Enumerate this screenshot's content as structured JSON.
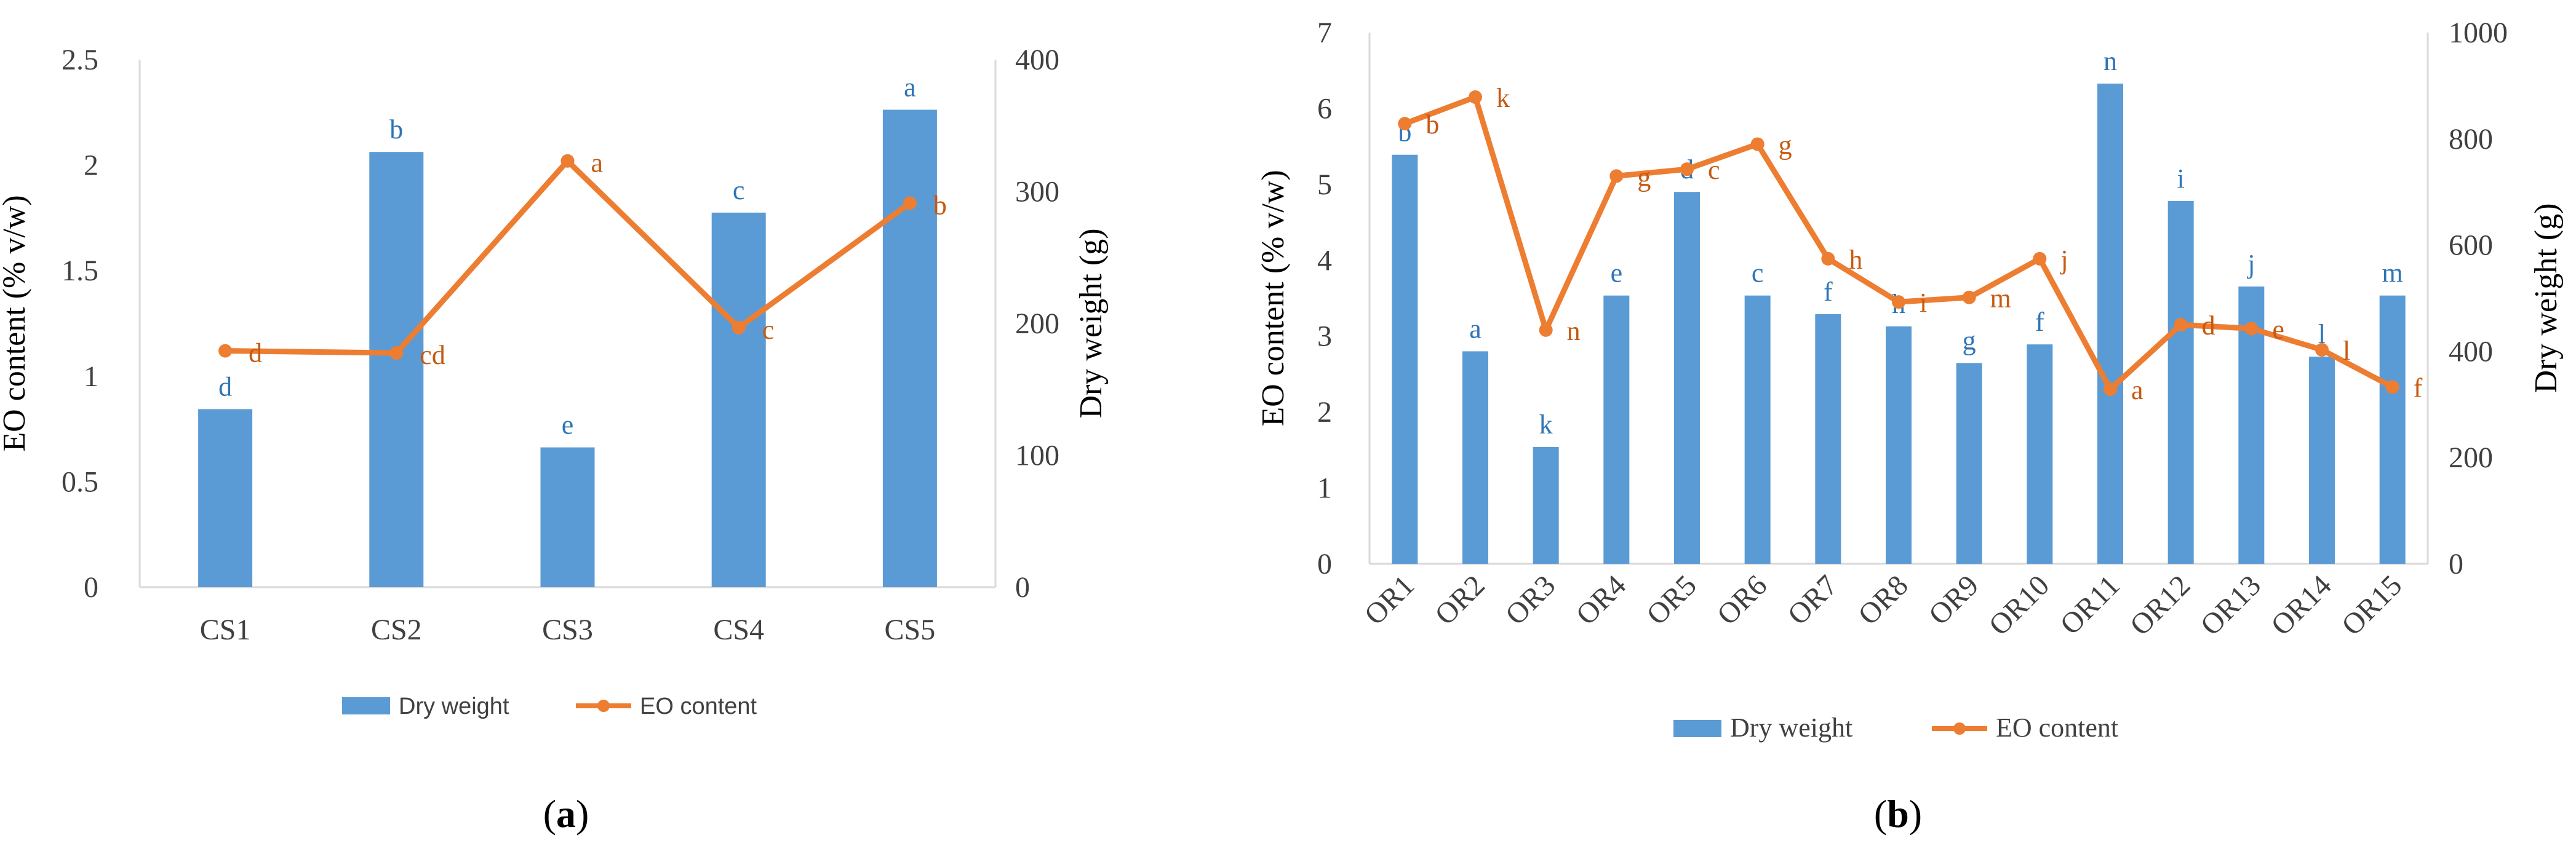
{
  "colors": {
    "bar": "#5B9BD5",
    "line": "#ED7D31",
    "bar_label": "#2E75B6",
    "line_label": "#C55A11",
    "axis": "#D9D9D9",
    "text": "#404040"
  },
  "chart_data": [
    {
      "type": "bar+line",
      "panel_label": "a",
      "categories": [
        "CS1",
        "CS2",
        "CS3",
        "CS4",
        "CS5"
      ],
      "series": [
        {
          "name": "Dry weight",
          "kind": "bar",
          "axis": "right",
          "values": [
            135,
            330,
            106,
            284,
            362
          ],
          "labels": [
            "d",
            "b",
            "e",
            "c",
            "a"
          ]
        },
        {
          "name": "EO content",
          "kind": "line",
          "axis": "left",
          "values": [
            1.12,
            1.11,
            2.02,
            1.23,
            1.82
          ],
          "labels": [
            "d",
            "cd",
            "a",
            "c",
            "b"
          ]
        }
      ],
      "ylabel_left": "EO content (% v/w)",
      "ylabel_right": "Dry weight (g)",
      "ylim_left": [
        0,
        2.5
      ],
      "yticks_left": [
        "0",
        "0.5",
        "1",
        "1.5",
        "2",
        "2.5"
      ],
      "ylim_right": [
        0,
        400
      ],
      "yticks_right": [
        "0",
        "100",
        "200",
        "300",
        "400"
      ],
      "legend": [
        "Dry weight",
        "EO content"
      ]
    },
    {
      "type": "bar+line",
      "panel_label": "b",
      "categories": [
        "OR1",
        "OR2",
        "OR3",
        "OR4",
        "OR5",
        "OR6",
        "OR7",
        "OR8",
        "OR9",
        "OR10",
        "OR11",
        "OR12",
        "OR13",
        "OR14",
        "OR15"
      ],
      "series": [
        {
          "name": "Dry weight",
          "kind": "bar",
          "axis": "right",
          "values": [
            770,
            400,
            220,
            505,
            700,
            505,
            470,
            447,
            378,
            413,
            904,
            683,
            522,
            390,
            505
          ],
          "labels": [
            "b",
            "a",
            "k",
            "e",
            "d",
            "c",
            "f",
            "h",
            "g",
            "f",
            "n",
            "i",
            "j",
            "l",
            "m"
          ]
        },
        {
          "name": "EO content",
          "kind": "line",
          "axis": "left",
          "values": [
            5.8,
            6.15,
            3.08,
            5.11,
            5.2,
            5.53,
            4.02,
            3.45,
            3.51,
            4.02,
            2.3,
            3.15,
            3.1,
            2.82,
            2.33
          ],
          "labels": [
            "b",
            "k",
            "n",
            "g",
            "c",
            "g",
            "h",
            "i",
            "m",
            "j",
            "a",
            "d",
            "e",
            "l",
            "f"
          ]
        }
      ],
      "ylabel_left": "EO content (% v/w)",
      "ylabel_right": "Dry weight (g)",
      "ylim_left": [
        0,
        7
      ],
      "yticks_left": [
        "0",
        "1",
        "2",
        "3",
        "4",
        "5",
        "6",
        "7"
      ],
      "ylim_right": [
        0,
        1000
      ],
      "yticks_right": [
        "0",
        "200",
        "400",
        "600",
        "800",
        "1000"
      ],
      "legend": [
        "Dry weight",
        "EO content"
      ]
    }
  ]
}
